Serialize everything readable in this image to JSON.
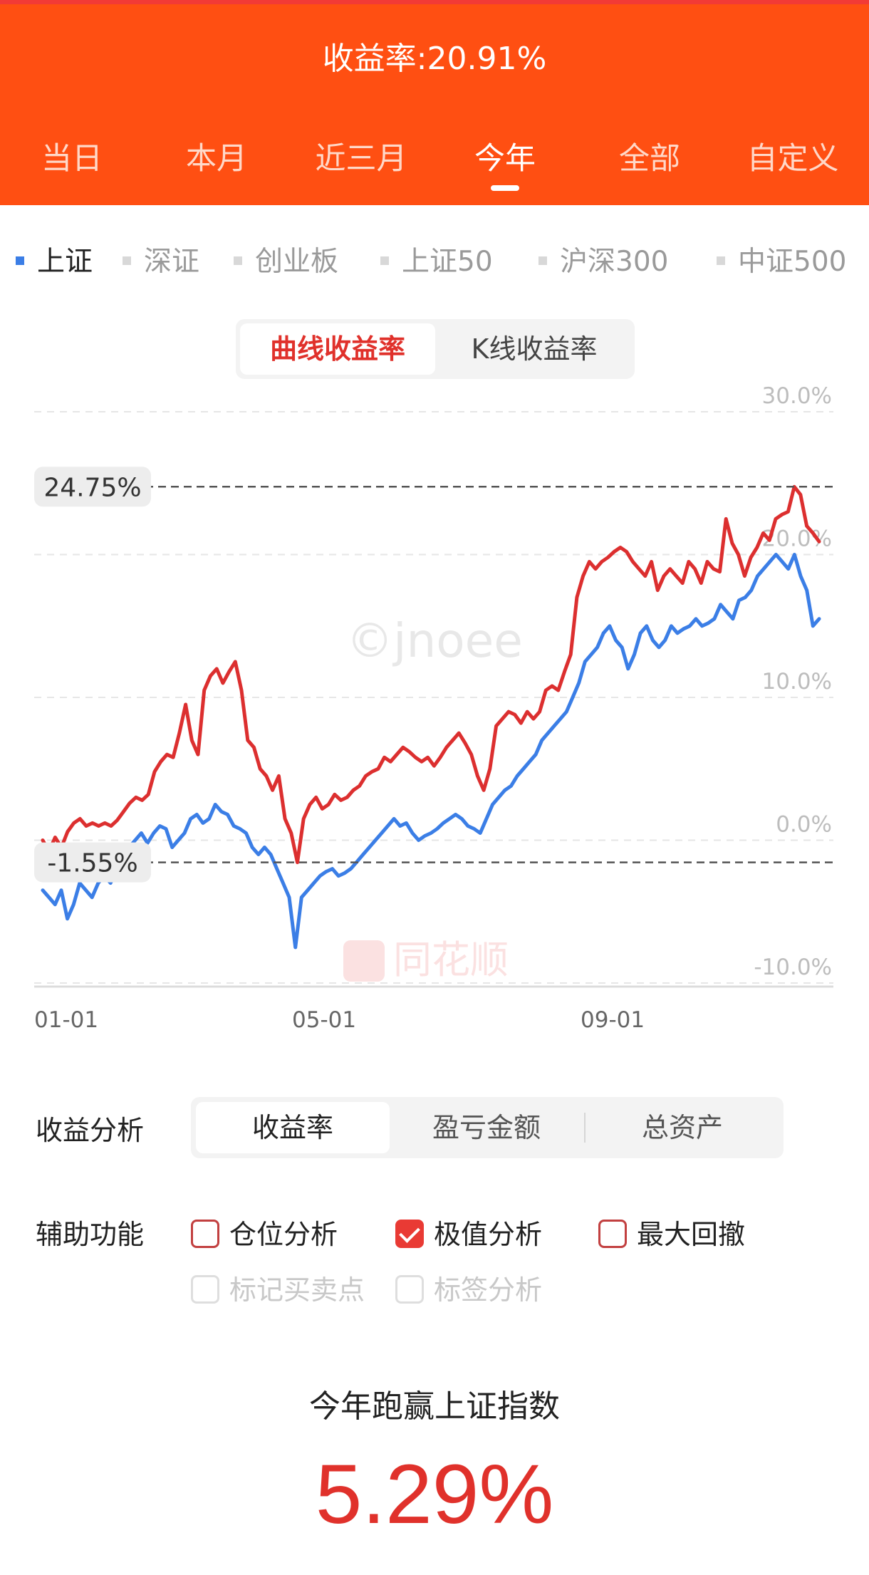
{
  "header": {
    "title": "收益率:20.91%"
  },
  "periods": [
    "当日",
    "本月",
    "近三月",
    "今年",
    "全部",
    "自定义"
  ],
  "active_period": 3,
  "benchmarks": [
    "上证",
    "深证",
    "创业板",
    "上证50",
    "沪深300",
    "中证500"
  ],
  "active_benchmark": 0,
  "chart_toggle": {
    "options": [
      "曲线收益率",
      "K线收益率"
    ],
    "active": 0
  },
  "colors": {
    "header": "#ff4f12",
    "series_red": "#dc2f2f",
    "series_blue": "#3b7ee6",
    "accent": "#e0312b"
  },
  "chart_data": {
    "type": "line",
    "x_labels": [
      "01-01",
      "05-01",
      "09-01"
    ],
    "y_ticks": [
      "30.0%",
      "20.0%",
      "10.0%",
      "0.0%",
      "-10.0%"
    ],
    "ylim": [
      -10,
      30
    ],
    "extremes": [
      {
        "label": "24.75%",
        "value": 24.75
      },
      {
        "label": "-1.55%",
        "value": -1.55
      }
    ],
    "series": [
      {
        "color": "red",
        "values": [
          0,
          -0.8,
          0.2,
          -0.5,
          0.6,
          1.2,
          1.5,
          1.0,
          1.2,
          1.0,
          1.2,
          1.0,
          1.4,
          2.0,
          2.6,
          3.0,
          2.8,
          3.2,
          4.8,
          5.5,
          6.0,
          5.8,
          7.5,
          9.5,
          7.0,
          6.0,
          10.5,
          11.5,
          12.0,
          11.0,
          11.8,
          12.5,
          10.5,
          7.0,
          6.5,
          5.0,
          4.5,
          3.5,
          4.5,
          1.5,
          0.5,
          -1.55,
          1.5,
          2.5,
          3.0,
          2.2,
          2.5,
          3.2,
          2.8,
          3.0,
          3.5,
          3.8,
          4.5,
          4.8,
          5.0,
          5.8,
          5.5,
          6.0,
          6.5,
          6.2,
          5.8,
          5.5,
          5.8,
          5.2,
          5.8,
          6.5,
          7.0,
          7.5,
          6.8,
          6.0,
          4.5,
          3.5,
          5.0,
          8.0,
          8.5,
          9.0,
          8.8,
          8.2,
          9.0,
          8.5,
          9.0,
          10.5,
          10.8,
          10.5,
          11.8,
          13.0,
          17.0,
          18.5,
          19.5,
          19.0,
          19.5,
          19.8,
          20.2,
          20.5,
          20.2,
          19.5,
          19.0,
          18.5,
          19.5,
          17.5,
          18.5,
          19.0,
          18.5,
          18.0,
          19.5,
          19.0,
          18.0,
          19.5,
          19.0,
          18.8,
          22.5,
          20.8,
          20.0,
          18.5,
          19.8,
          20.5,
          21.5,
          21.0,
          22.5,
          22.8,
          23.0,
          24.75,
          24.2,
          22.0,
          21.5,
          20.91
        ]
      },
      {
        "color": "blue",
        "values": [
          -3.5,
          -4.0,
          -4.5,
          -3.5,
          -5.5,
          -4.5,
          -3.0,
          -3.5,
          -4.0,
          -3.0,
          -2.5,
          -3.0,
          -2.0,
          -1.0,
          -0.5,
          0.0,
          0.5,
          -0.2,
          0.5,
          1.0,
          0.8,
          -0.5,
          0.0,
          0.5,
          1.5,
          1.8,
          1.2,
          1.5,
          2.5,
          2.0,
          1.8,
          1.0,
          0.8,
          0.5,
          -0.5,
          -1.0,
          -0.5,
          -1.0,
          -2.0,
          -3.0,
          -4.0,
          -7.5,
          -4.0,
          -3.5,
          -3.0,
          -2.5,
          -2.2,
          -2.0,
          -2.5,
          -2.3,
          -2.0,
          -1.5,
          -1.0,
          -0.5,
          0.0,
          0.5,
          1.0,
          1.5,
          1.0,
          1.2,
          0.5,
          0.0,
          0.3,
          0.5,
          0.8,
          1.2,
          1.5,
          1.8,
          1.5,
          1.0,
          0.8,
          0.5,
          1.5,
          2.5,
          3.0,
          3.5,
          3.8,
          4.5,
          5.0,
          5.5,
          6.0,
          7.0,
          7.5,
          8.0,
          8.5,
          9.0,
          10.0,
          11.0,
          12.5,
          13.0,
          13.5,
          14.5,
          15.0,
          14.0,
          13.5,
          12.0,
          13.0,
          14.5,
          15.0,
          14.0,
          13.5,
          14.0,
          15.0,
          14.5,
          14.8,
          15.0,
          15.5,
          15.0,
          15.2,
          15.5,
          16.5,
          16.0,
          15.5,
          16.8,
          17.0,
          17.5,
          18.5,
          19.0,
          19.5,
          20.0,
          19.5,
          19.0,
          20.0,
          18.5,
          17.5,
          15.0,
          15.5
        ]
      }
    ]
  },
  "analysis": {
    "label": "收益分析",
    "options": [
      "收益率",
      "盈亏金额",
      "总资产"
    ],
    "active": 0
  },
  "auxiliary": {
    "label": "辅助功能",
    "options": [
      {
        "label": "仓位分析",
        "checked": false
      },
      {
        "label": "极值分析",
        "checked": true
      },
      {
        "label": "最大回撤",
        "checked": false
      },
      {
        "label": "标记买卖点",
        "checked": false,
        "disabled": true
      },
      {
        "label": "标签分析",
        "checked": false,
        "disabled": true
      }
    ]
  },
  "summary": {
    "label": "今年跑赢上证指数",
    "value": "5.29%"
  },
  "watermarks": {
    "top": "©jnoee",
    "bottom": "同花顺"
  }
}
